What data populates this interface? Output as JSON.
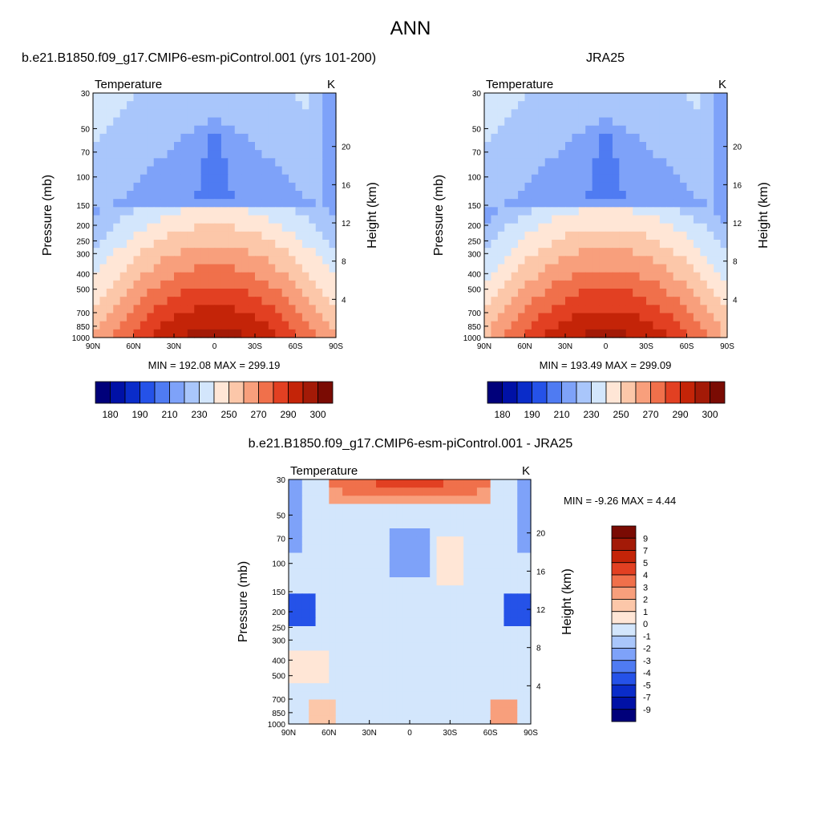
{
  "page": {
    "main_title": "ANN"
  },
  "colors": {
    "abs_levels": [
      "#00007a",
      "#0011a6",
      "#0a2cc9",
      "#2552e8",
      "#4f7bf2",
      "#7ea2f9",
      "#a9c6fb",
      "#d3e6fc",
      "#ffe6d6",
      "#fcc7a9",
      "#f89f7c",
      "#f0704b",
      "#e24022",
      "#c42408",
      "#a31a07",
      "#7a0b03"
    ],
    "diff_levels": [
      "#00007a",
      "#0011a6",
      "#0a2cc9",
      "#2552e8",
      "#4f7bf2",
      "#7ea2f9",
      "#a9c6fb",
      "#d3e6fc",
      "#ffe6d6",
      "#fcc7a9",
      "#f89f7c",
      "#f0704b",
      "#e24022",
      "#c42408",
      "#a31a07",
      "#7a0b03"
    ]
  },
  "chart_data": [
    {
      "type": "heatmap",
      "id": "model",
      "title": "b.e21.B1850.f09_g17.CMIP6-esm-piControl.001 (yrs 101-200)",
      "left_label": "Temperature",
      "right_label": "K",
      "ylabel": "Pressure (mb)",
      "y2label": "Height (km)",
      "x_ticks": [
        "90N",
        "60N",
        "30N",
        "0",
        "30S",
        "60S",
        "90S"
      ],
      "y_ticks": [
        "30",
        "50",
        "70",
        "100",
        "150",
        "200",
        "250",
        "300",
        "400",
        "500",
        "700",
        "850",
        "1000"
      ],
      "y2_ticks": [
        "20",
        "16",
        "12",
        "8",
        "4"
      ],
      "stats": "MIN = 192.08   MAX = 299.19",
      "min": 192.08,
      "max": 299.19,
      "colorbar_labels": [
        "180",
        "190",
        "210",
        "230",
        "250",
        "270",
        "290",
        "300"
      ],
      "colorbar_levels": [
        175,
        180,
        185,
        190,
        200,
        210,
        220,
        230,
        240,
        250,
        260,
        270,
        280,
        290,
        295,
        300
      ]
    },
    {
      "type": "heatmap",
      "id": "obs",
      "title": "JRA25",
      "left_label": "Temperature",
      "right_label": "K",
      "ylabel": "Pressure (mb)",
      "y2label": "Height (km)",
      "x_ticks": [
        "90N",
        "60N",
        "30N",
        "0",
        "30S",
        "60S",
        "90S"
      ],
      "y_ticks": [
        "30",
        "50",
        "70",
        "100",
        "150",
        "200",
        "250",
        "300",
        "400",
        "500",
        "700",
        "850",
        "1000"
      ],
      "y2_ticks": [
        "20",
        "16",
        "12",
        "8",
        "4"
      ],
      "stats": "MIN = 193.49   MAX = 299.09",
      "min": 193.49,
      "max": 299.09,
      "colorbar_labels": [
        "180",
        "190",
        "210",
        "230",
        "250",
        "270",
        "290",
        "300"
      ],
      "colorbar_levels": [
        175,
        180,
        185,
        190,
        200,
        210,
        220,
        230,
        240,
        250,
        260,
        270,
        280,
        290,
        295,
        300
      ]
    },
    {
      "type": "heatmap",
      "id": "diff",
      "title": "b.e21.B1850.f09_g17.CMIP6-esm-piControl.001 - JRA25",
      "left_label": "Temperature",
      "right_label": "K",
      "ylabel": "Pressure (mb)",
      "y2label": "Height (km)",
      "x_ticks": [
        "90N",
        "60N",
        "30N",
        "0",
        "30S",
        "60S",
        "90S"
      ],
      "y_ticks": [
        "30",
        "50",
        "70",
        "100",
        "150",
        "200",
        "250",
        "300",
        "400",
        "500",
        "700",
        "850",
        "1000"
      ],
      "y2_ticks": [
        "20",
        "16",
        "12",
        "8",
        "4"
      ],
      "stats": "MIN =  -9.26  MAX =   4.44",
      "min": -9.26,
      "max": 4.44,
      "colorbar_labels": [
        "9",
        "7",
        "5",
        "4",
        "3",
        "2",
        "1",
        "0",
        "-1",
        "-2",
        "-3",
        "-4",
        "-5",
        "-7",
        "-9"
      ],
      "colorbar_levels": [
        -9,
        -7,
        -5,
        -4,
        -3,
        -2,
        -1,
        0,
        1,
        2,
        3,
        4,
        5,
        7,
        9
      ]
    }
  ]
}
